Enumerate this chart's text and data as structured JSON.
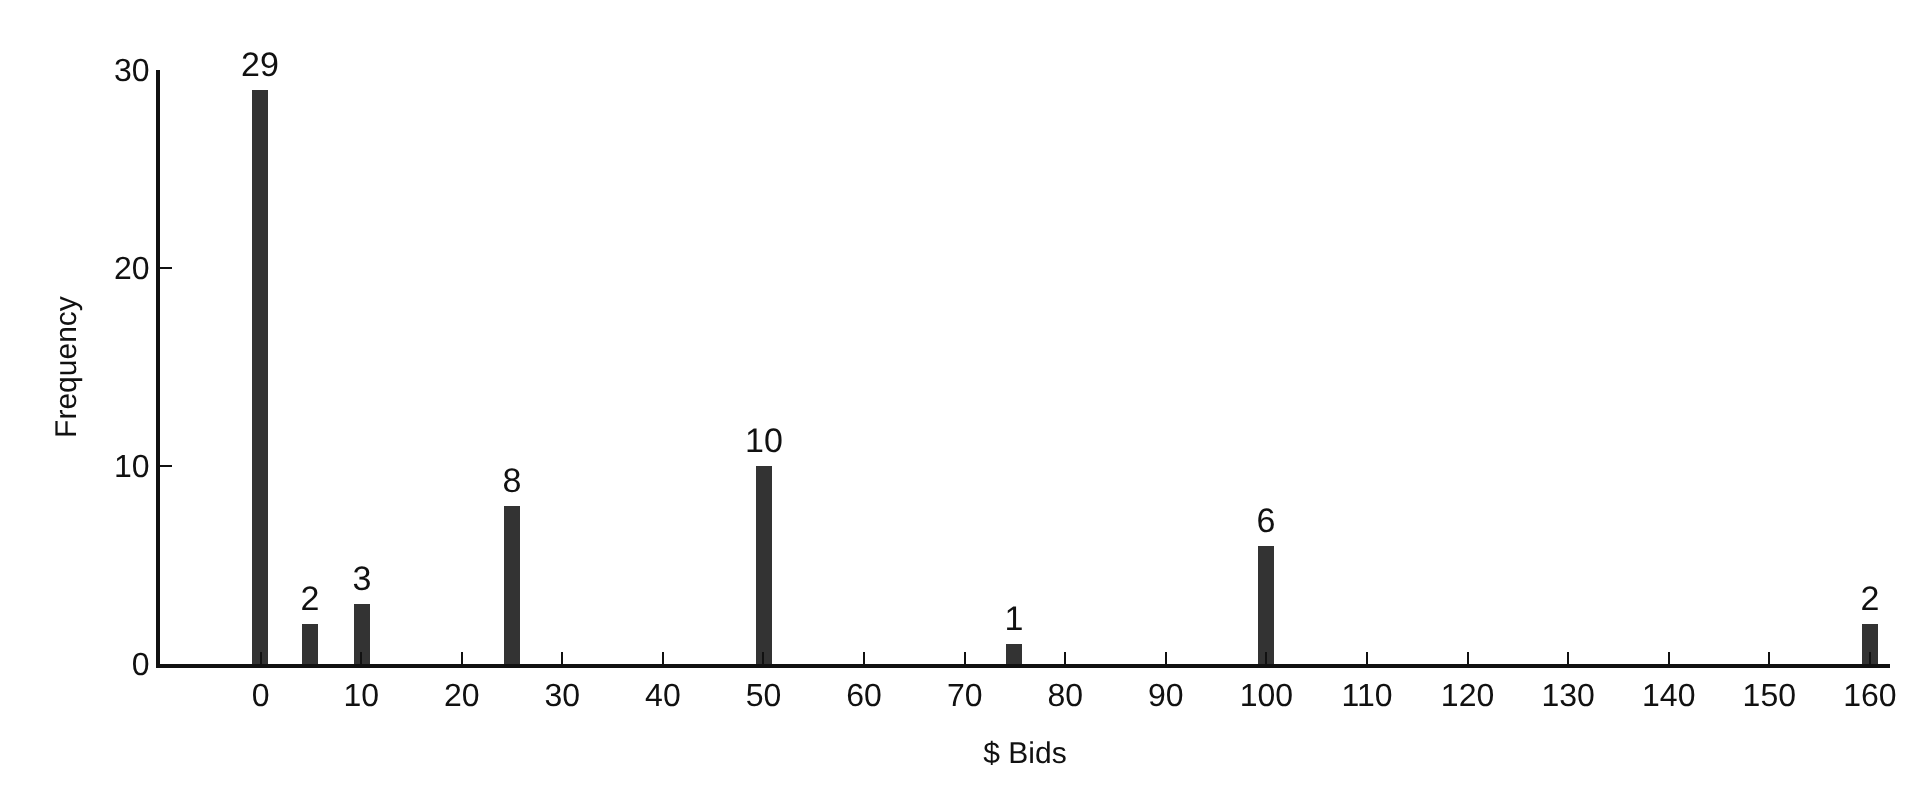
{
  "chart_data": {
    "type": "bar",
    "xlabel": "$ Bids",
    "ylabel": "Frequency",
    "x": [
      0,
      5,
      10,
      25,
      50,
      75,
      100,
      160
    ],
    "values": [
      29,
      2,
      3,
      8,
      10,
      1,
      6,
      2
    ],
    "color": "#333333",
    "data_labels": true,
    "xlim": [
      -10,
      162
    ],
    "xticks": [
      0,
      10,
      20,
      30,
      40,
      50,
      60,
      70,
      80,
      90,
      100,
      110,
      120,
      130,
      140,
      150,
      160
    ],
    "ylim": [
      0,
      30
    ],
    "yticks": [
      0,
      10,
      20,
      30
    ],
    "legend": false
  }
}
